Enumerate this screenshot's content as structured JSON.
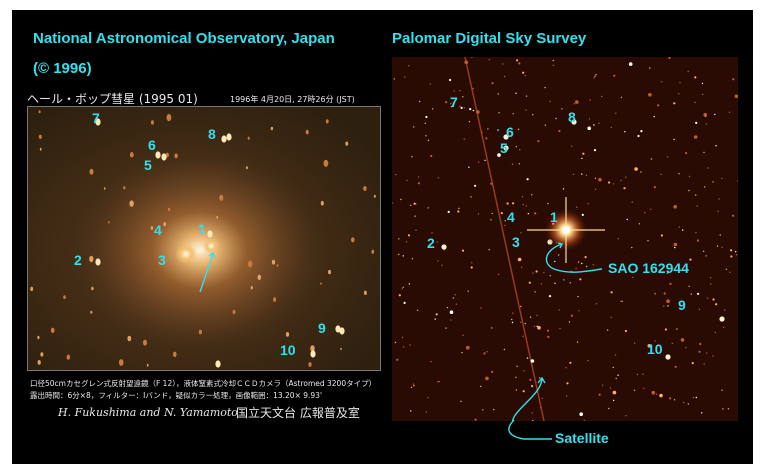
{
  "left_panel": {
    "credit_line1": "National Astronomical Observatory, Japan",
    "credit_line2": "(© 1996)",
    "title_jp": "ヘール・ボップ彗星 (1995 01)",
    "title_date": "1996年 4月20日, 27時26分 (JST)",
    "star_labels": [
      "1",
      "2",
      "3",
      "4",
      "5",
      "6",
      "7",
      "8",
      "9",
      "10"
    ],
    "caption_line1": "口径50cmカセグレン式反射望遠鏡（F 12），液体窒素式冷却ＣＣＤカメラ（Astromed 3200タイプ）",
    "caption_line2": "露出時間：6分×8，フィルター：Iバンド，疑似カラー処理，画像範囲：13.20× 9.93'",
    "authors": "H. Fukushima  and  N. Yamamoto",
    "institution": "国立天文台  広報普及室"
  },
  "right_panel": {
    "title": "Palomar Digital Sky Survey",
    "star_labels": [
      "1",
      "2",
      "3",
      "4",
      "5",
      "6",
      "7",
      "8",
      "9",
      "10"
    ],
    "sao_label": "SAO 162944",
    "satellite_label": "Satellite"
  },
  "colors": {
    "label_cyan": "#33e0ee",
    "frame_background": "#000000",
    "left_sky": "#3a2814",
    "right_sky": "#2a0b04"
  }
}
